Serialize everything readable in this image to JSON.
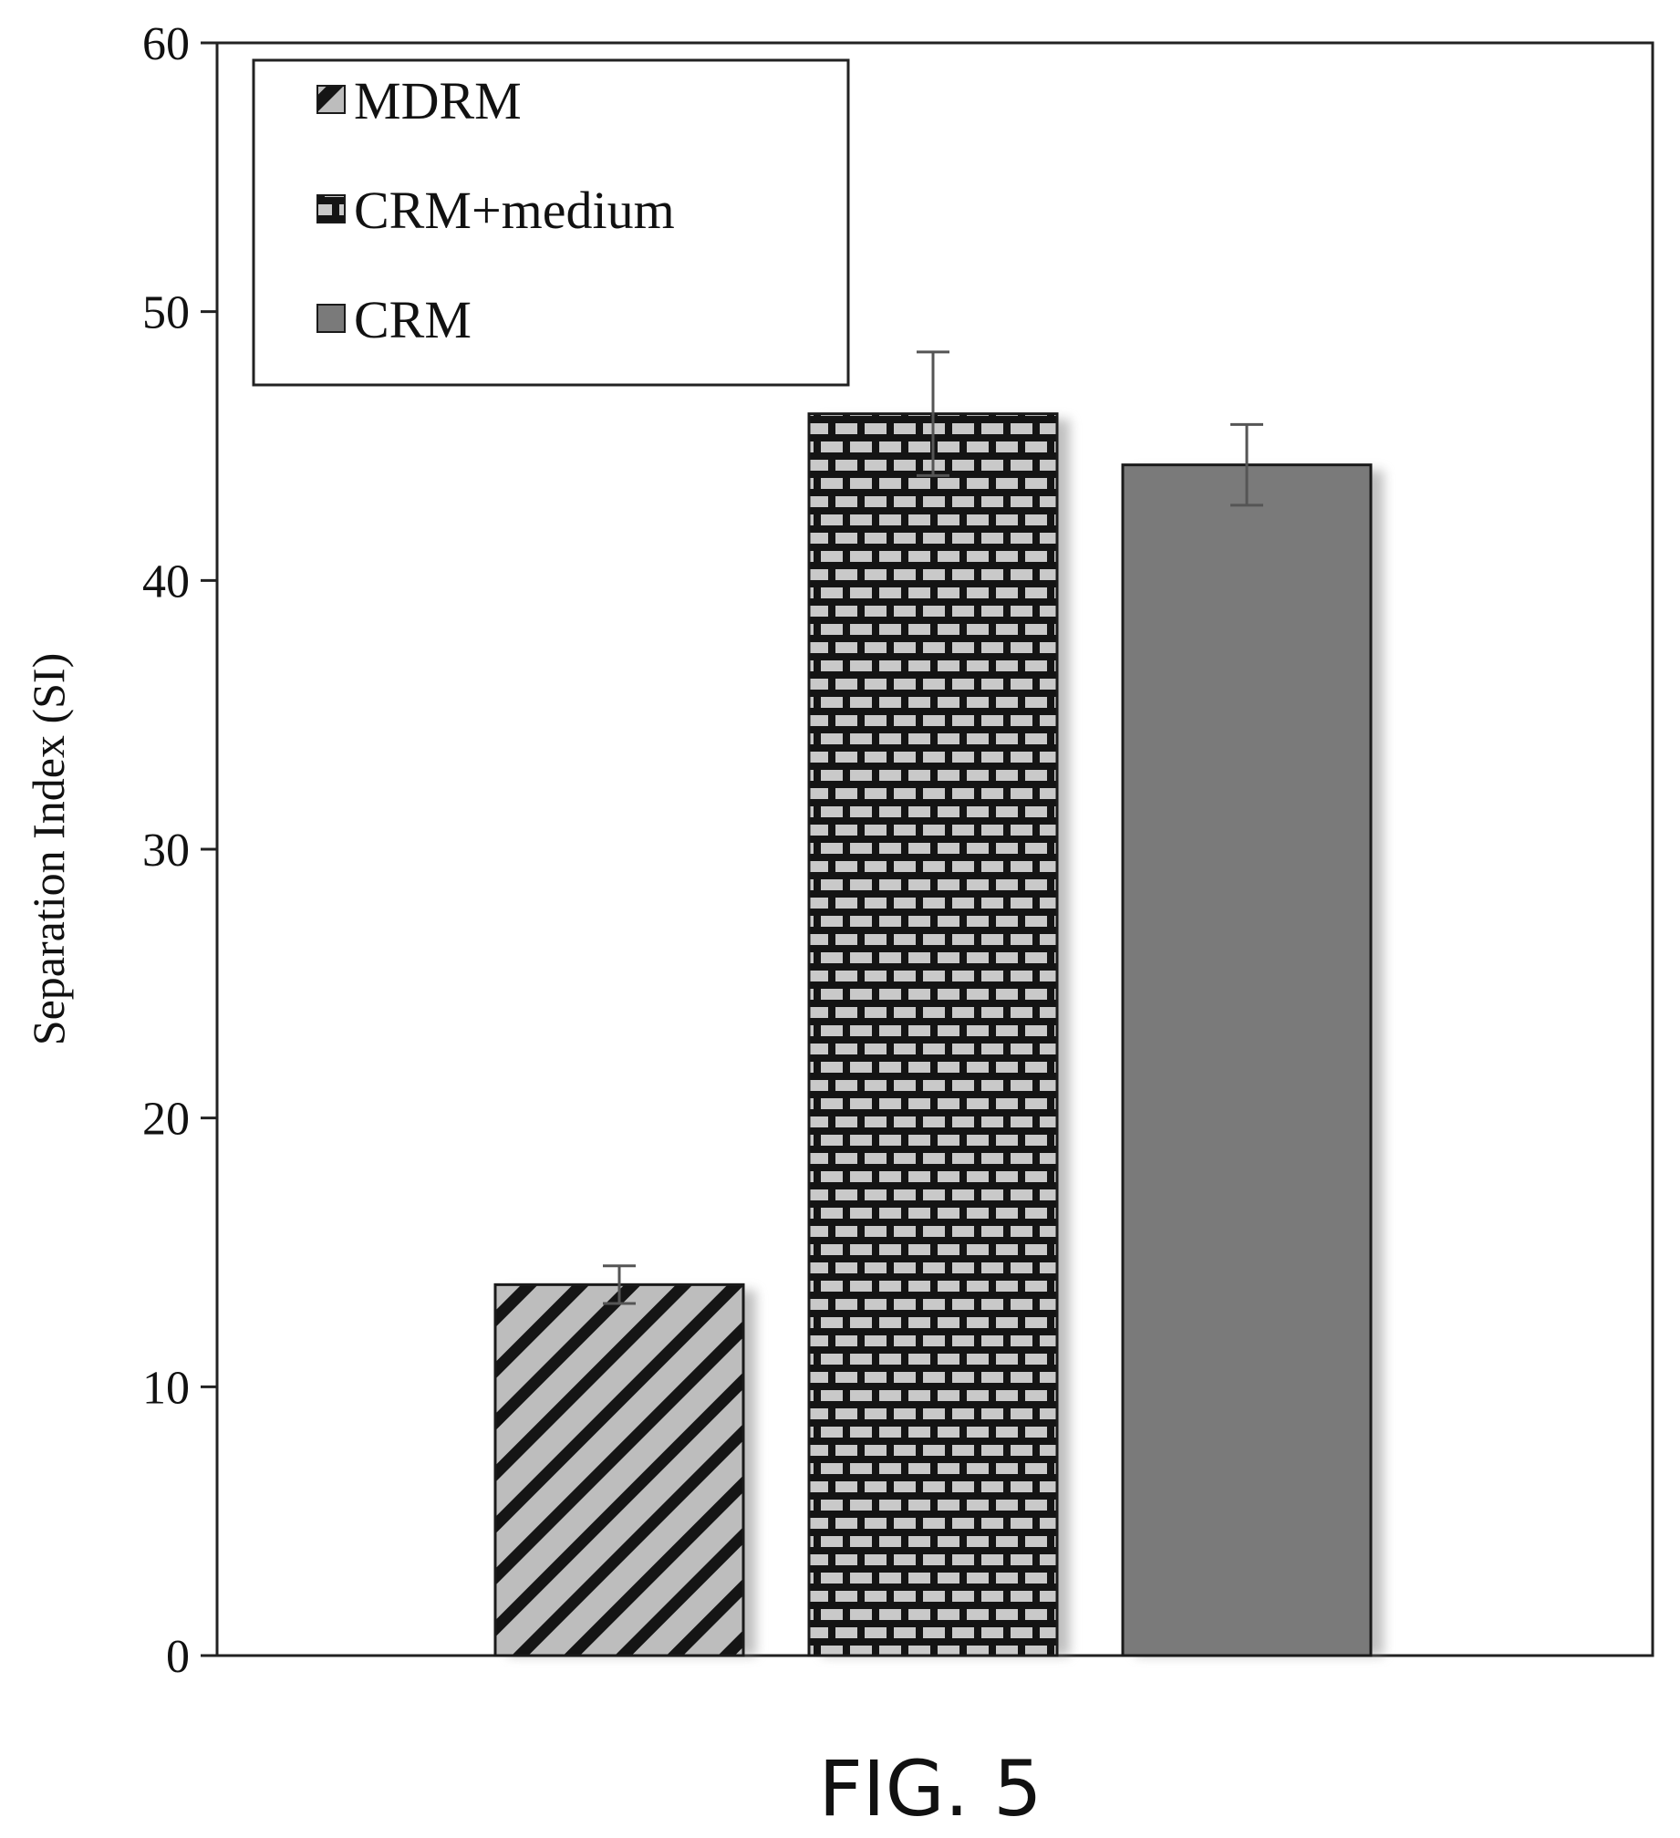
{
  "chart_data": {
    "type": "bar",
    "title": "",
    "xlabel": "",
    "ylabel": "Separation Index (SI)",
    "ylim": [
      0,
      60
    ],
    "yticks": [
      0,
      10,
      20,
      30,
      40,
      50,
      60
    ],
    "grid": false,
    "legend_position": "top-left",
    "series": [
      {
        "name": "MDRM",
        "value": 13.8,
        "error": 0.7,
        "pattern": "diagonal-stripes",
        "color": "#b9b9b9"
      },
      {
        "name": "CRM+medium",
        "value": 46.2,
        "error": 2.3,
        "pattern": "brick",
        "color": "#c4c4c4"
      },
      {
        "name": "CRM",
        "value": 44.3,
        "error": 1.5,
        "pattern": "solid",
        "color": "#7a7a7a"
      }
    ]
  },
  "caption": "FIG. 5"
}
